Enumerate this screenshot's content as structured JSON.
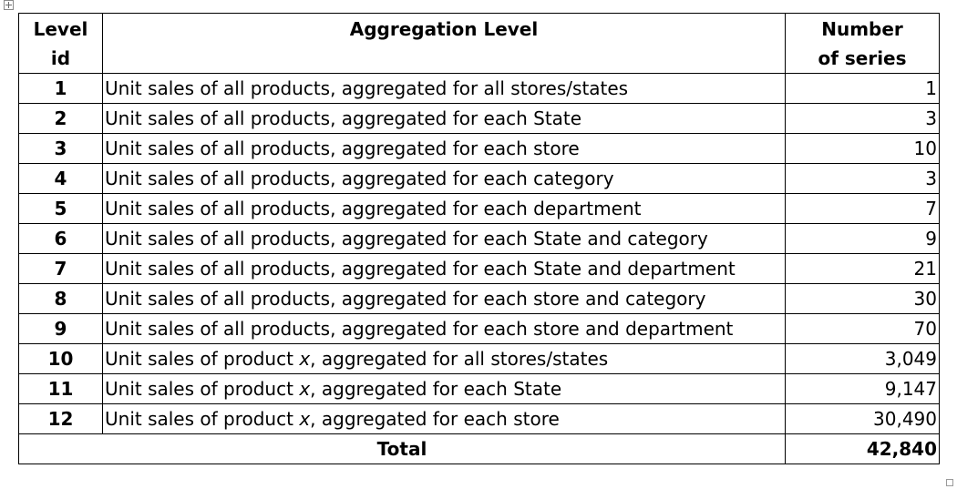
{
  "table": {
    "headers": {
      "level_id_line1": "Level",
      "level_id_line2": "id",
      "aggregation_level": "Aggregation Level",
      "num_series_line1": "Number",
      "num_series_line2": "of series"
    },
    "rows": [
      {
        "id": "1",
        "desc_pre": "Unit sales of all products, aggregated for all stores/states",
        "var": "",
        "desc_post": "",
        "count": "1"
      },
      {
        "id": "2",
        "desc_pre": "Unit sales of all products, aggregated for each State",
        "var": "",
        "desc_post": "",
        "count": "3"
      },
      {
        "id": "3",
        "desc_pre": "Unit sales of all products, aggregated for each store",
        "var": "",
        "desc_post": "",
        "count": "10"
      },
      {
        "id": "4",
        "desc_pre": "Unit sales of all products, aggregated for each category",
        "var": "",
        "desc_post": "",
        "count": "3"
      },
      {
        "id": "5",
        "desc_pre": "Unit sales of all products, aggregated for each department",
        "var": "",
        "desc_post": "",
        "count": "7"
      },
      {
        "id": "6",
        "desc_pre": "Unit sales of all products, aggregated for each State and category",
        "var": "",
        "desc_post": "",
        "count": "9"
      },
      {
        "id": "7",
        "desc_pre": "Unit sales of all products, aggregated for each State and department",
        "var": "",
        "desc_post": "",
        "count": "21"
      },
      {
        "id": "8",
        "desc_pre": "Unit sales of all products, aggregated for each store and category",
        "var": "",
        "desc_post": "",
        "count": "30"
      },
      {
        "id": "9",
        "desc_pre": "Unit sales of all products, aggregated for each store and department",
        "var": "",
        "desc_post": "",
        "count": "70"
      },
      {
        "id": "10",
        "desc_pre": "Unit sales of product ",
        "var": "x",
        "desc_post": ", aggregated for all stores/states",
        "count": "3,049"
      },
      {
        "id": "11",
        "desc_pre": "Unit sales of product ",
        "var": "x",
        "desc_post": ", aggregated for each State",
        "count": "9,147"
      },
      {
        "id": "12",
        "desc_pre": "Unit sales of product ",
        "var": "x",
        "desc_post": ", aggregated for each store",
        "count": "30,490"
      }
    ],
    "total": {
      "label": "Total",
      "count": "42,840"
    }
  }
}
